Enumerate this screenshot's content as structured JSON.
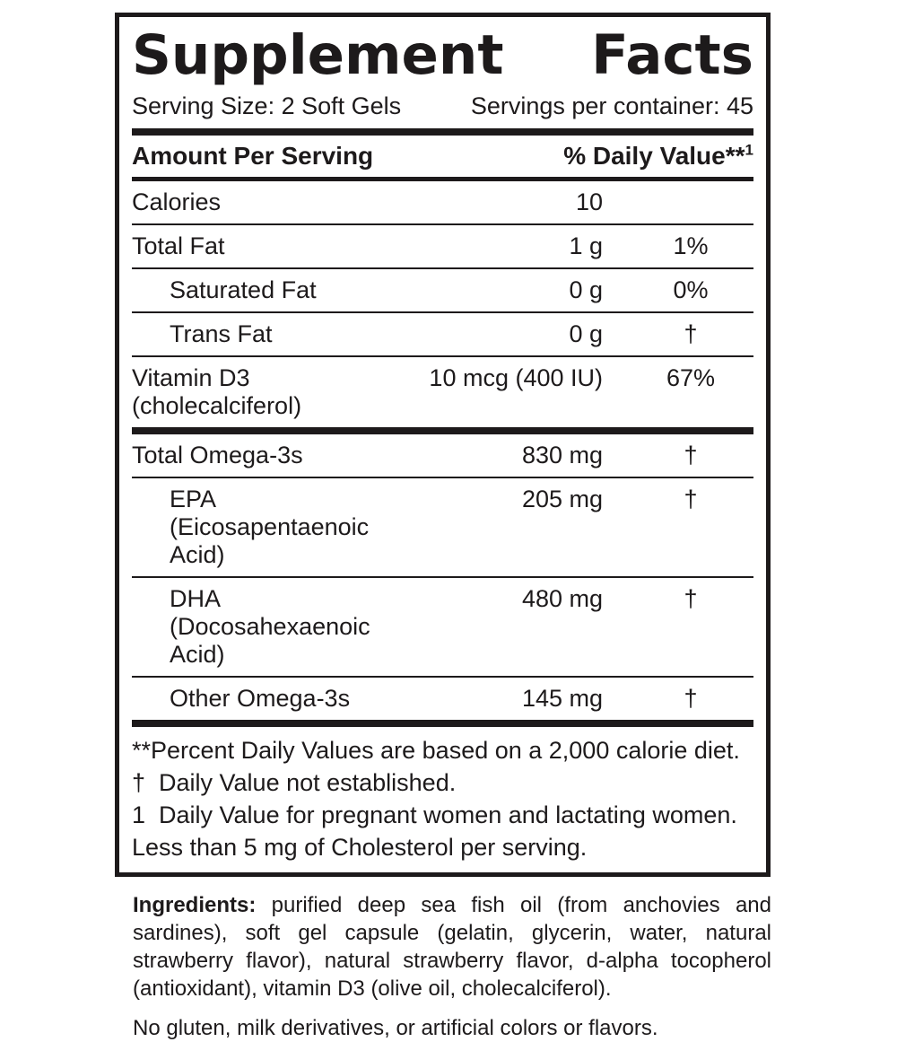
{
  "panel": {
    "title": {
      "word1": "Supplement",
      "word2": "Facts"
    },
    "serving_size": "Serving Size: 2 Soft Gels",
    "servings_per_container": "Servings per container: 45",
    "header": {
      "amount_label": "Amount Per Serving",
      "dv_label": "% Daily Value**",
      "dv_superscript": "1"
    },
    "rows": [
      {
        "name": "Calories",
        "amount": "10",
        "dv": "",
        "indent": false,
        "sep_after": "thin"
      },
      {
        "name": "Total Fat",
        "amount": "1 g",
        "dv": "1%",
        "indent": false,
        "sep_after": "thin"
      },
      {
        "name": "Saturated Fat",
        "amount": "0 g",
        "dv": "0%",
        "indent": true,
        "sep_after": "thin"
      },
      {
        "name": "Trans Fat",
        "amount": "0 g",
        "dv": "†",
        "indent": true,
        "sep_after": "thin"
      },
      {
        "name": "Vitamin D3",
        "name2": "(cholecalciferol)",
        "amount": "10 mcg (400 IU)",
        "dv": "67%",
        "indent": false,
        "sep_after": "thick"
      },
      {
        "name": "Total Omega-3s",
        "amount": "830 mg",
        "dv": "†",
        "indent": false,
        "sep_after": "thin"
      },
      {
        "name": "EPA (Eicosapentaenoic Acid)",
        "amount": "205 mg",
        "dv": "†",
        "indent": true,
        "sep_after": "thin"
      },
      {
        "name": "DHA (Docosahexaenoic Acid)",
        "amount": "480 mg",
        "dv": "†",
        "indent": true,
        "sep_after": "thin"
      },
      {
        "name": "Other Omega-3s",
        "amount": "145 mg",
        "dv": "†",
        "indent": true,
        "sep_after": "thick"
      }
    ],
    "footnotes": [
      "**Percent Daily Values are based on a 2,000 calorie diet.",
      "†  Daily Value not established.",
      "1  Daily Value for pregnant women and lactating women.",
      "Less than 5 mg of Cholesterol per serving."
    ]
  },
  "ingredients": {
    "label": "Ingredients:",
    "text": " purified deep sea fish oil (from anchovies and sardines), soft gel capsule (gelatin, glycerin, water, natural strawberry flavor), natural strawberry flavor, d-alpha tocopherol (antioxidant), vitamin D3 (olive oil, cholecalciferol)."
  },
  "allergen_note": "No gluten, milk derivatives, or artificial colors or flavors.",
  "colors": {
    "text": "#1d1a1b",
    "background": "#ffffff"
  }
}
